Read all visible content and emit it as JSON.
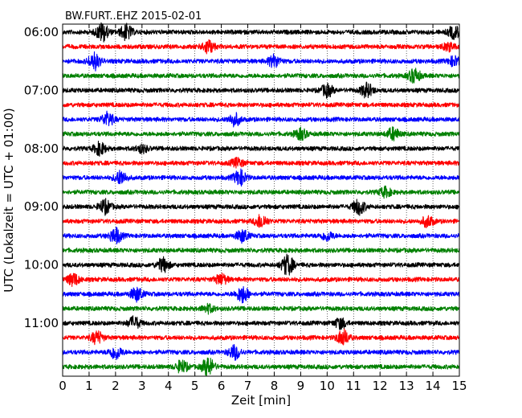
{
  "chart_data": {
    "type": "line",
    "title": "BW.FURT..EHZ 2015-02-01",
    "xlabel": "Zeit  [min]",
    "ylabel": "UTC (Lokalzeit = UTC + 01:00)",
    "xlim": [
      0,
      15
    ],
    "x_ticks": [
      "0",
      "1",
      "2",
      "3",
      "4",
      "5",
      "6",
      "7",
      "8",
      "9",
      "10",
      "11",
      "12",
      "13",
      "14",
      "15"
    ],
    "y_tick_labels": [
      "06:00",
      "07:00",
      "08:00",
      "09:00",
      "10:00",
      "11:00"
    ],
    "y_tick_rows": [
      0,
      4,
      8,
      12,
      16,
      20
    ],
    "vertical_grid": true,
    "trace_colors": [
      "#000000",
      "#ff0000",
      "#0000ff",
      "#008000"
    ],
    "traces": [
      {
        "start": "06:00",
        "bursts": [
          {
            "t": 1.5,
            "amp": 1.2
          },
          {
            "t": 2.4,
            "amp": 1.0
          },
          {
            "t": 14.8,
            "amp": 0.8
          }
        ]
      },
      {
        "start": "06:15",
        "bursts": [
          {
            "t": 5.5,
            "amp": 0.9
          },
          {
            "t": 14.6,
            "amp": 0.5
          }
        ]
      },
      {
        "start": "06:30",
        "bursts": [
          {
            "t": 1.2,
            "amp": 1.1
          },
          {
            "t": 8.0,
            "amp": 0.8
          },
          {
            "t": 14.8,
            "amp": 0.6
          }
        ]
      },
      {
        "start": "06:45",
        "bursts": [
          {
            "t": 13.3,
            "amp": 0.9
          }
        ]
      },
      {
        "start": "07:00",
        "bursts": [
          {
            "t": 10.0,
            "amp": 0.8
          },
          {
            "t": 11.5,
            "amp": 0.9
          }
        ]
      },
      {
        "start": "07:15",
        "bursts": []
      },
      {
        "start": "07:30",
        "bursts": [
          {
            "t": 1.7,
            "amp": 0.9
          },
          {
            "t": 6.5,
            "amp": 0.8
          }
        ]
      },
      {
        "start": "07:45",
        "bursts": [
          {
            "t": 9.0,
            "amp": 0.7
          },
          {
            "t": 12.5,
            "amp": 0.8
          }
        ]
      },
      {
        "start": "08:00",
        "bursts": [
          {
            "t": 1.4,
            "amp": 0.8
          },
          {
            "t": 3.0,
            "amp": 0.5
          }
        ]
      },
      {
        "start": "08:15",
        "bursts": [
          {
            "t": 6.6,
            "amp": 0.6
          }
        ]
      },
      {
        "start": "08:30",
        "bursts": [
          {
            "t": 2.2,
            "amp": 0.9
          },
          {
            "t": 6.7,
            "amp": 1.0
          }
        ]
      },
      {
        "start": "08:45",
        "bursts": [
          {
            "t": 12.2,
            "amp": 0.6
          }
        ]
      },
      {
        "start": "09:00",
        "bursts": [
          {
            "t": 1.6,
            "amp": 0.9
          },
          {
            "t": 11.2,
            "amp": 1.0
          }
        ]
      },
      {
        "start": "09:15",
        "bursts": [
          {
            "t": 7.5,
            "amp": 0.9
          },
          {
            "t": 13.8,
            "amp": 0.7
          }
        ]
      },
      {
        "start": "09:30",
        "bursts": [
          {
            "t": 2.0,
            "amp": 1.0
          },
          {
            "t": 6.8,
            "amp": 0.8
          },
          {
            "t": 10.0,
            "amp": 0.6
          }
        ]
      },
      {
        "start": "09:45",
        "bursts": []
      },
      {
        "start": "10:00",
        "bursts": [
          {
            "t": 3.8,
            "amp": 0.9
          },
          {
            "t": 8.5,
            "amp": 1.3
          }
        ]
      },
      {
        "start": "10:15",
        "bursts": [
          {
            "t": 0.4,
            "amp": 0.8
          },
          {
            "t": 6.0,
            "amp": 0.7
          }
        ]
      },
      {
        "start": "10:30",
        "bursts": [
          {
            "t": 2.8,
            "amp": 0.9
          },
          {
            "t": 6.8,
            "amp": 1.1
          }
        ]
      },
      {
        "start": "10:45",
        "bursts": [
          {
            "t": 5.5,
            "amp": 0.5
          }
        ]
      },
      {
        "start": "11:00",
        "bursts": [
          {
            "t": 2.7,
            "amp": 0.8
          },
          {
            "t": 10.5,
            "amp": 0.7
          }
        ]
      },
      {
        "start": "11:15",
        "bursts": [
          {
            "t": 1.3,
            "amp": 0.8
          },
          {
            "t": 10.6,
            "amp": 1.0
          }
        ]
      },
      {
        "start": "11:30",
        "bursts": [
          {
            "t": 2.0,
            "amp": 0.9
          },
          {
            "t": 6.5,
            "amp": 0.9
          }
        ]
      },
      {
        "start": "11:45",
        "bursts": [
          {
            "t": 5.5,
            "amp": 1.2
          },
          {
            "t": 4.5,
            "amp": 0.8
          }
        ]
      }
    ]
  }
}
